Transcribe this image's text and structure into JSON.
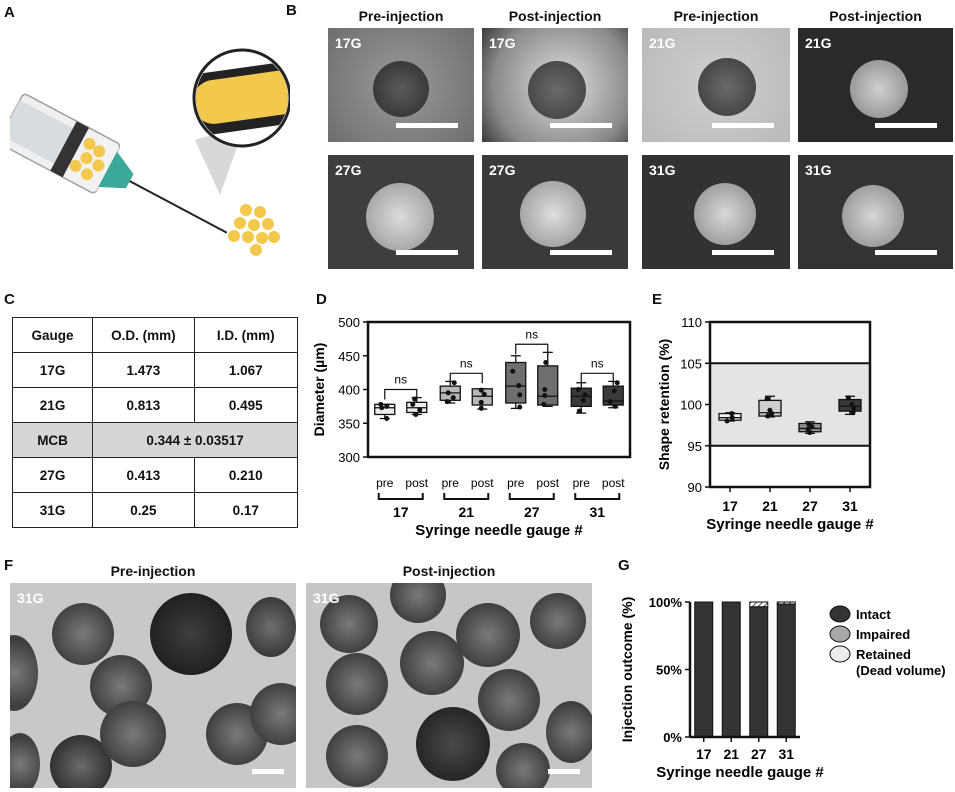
{
  "panels": {
    "A": "A",
    "B": "B",
    "C": "C",
    "D": "D",
    "E": "E",
    "F": "F",
    "G": "G"
  },
  "panel_b": {
    "headers": [
      "Pre-injection",
      "Post-injection",
      "Pre-injection",
      "Post-injection"
    ],
    "tags": [
      "17G",
      "17G",
      "21G",
      "21G",
      "27G",
      "27G",
      "31G",
      "31G"
    ]
  },
  "table": {
    "headers": [
      "Gauge",
      "O.D. (mm)",
      "I.D. (mm)"
    ],
    "rows": [
      {
        "gauge": "17G",
        "od": "1.473",
        "id": "1.067"
      },
      {
        "gauge": "21G",
        "od": "0.813",
        "id": "0.495"
      },
      {
        "gauge": "MCB",
        "merged": "0.344 ± 0.03517"
      },
      {
        "gauge": "27G",
        "od": "0.413",
        "id": "0.210"
      },
      {
        "gauge": "31G",
        "od": "0.25",
        "id": "0.17"
      }
    ]
  },
  "panel_f": {
    "headers": [
      "Pre-injection",
      "Post-injection"
    ],
    "tags": [
      "31G",
      "31G"
    ]
  },
  "chart_data": [
    {
      "panel": "D",
      "type": "box",
      "ylabel": "Diameter (µm)",
      "xlabel": "Syringe needle gauge #",
      "ylim": [
        300,
        500
      ],
      "yticks": [
        300,
        350,
        400,
        450,
        500
      ],
      "groups": [
        "17",
        "21",
        "27",
        "31"
      ],
      "sub_labels": [
        "pre",
        "post"
      ],
      "significance": [
        "ns",
        "ns",
        "ns",
        "ns"
      ],
      "boxes": [
        {
          "group": "17",
          "cond": "pre",
          "min": 357,
          "q1": 363,
          "median": 373,
          "q3": 378,
          "max": 378,
          "points": [
            357,
            373,
            375,
            378
          ]
        },
        {
          "group": "17",
          "cond": "post",
          "min": 363,
          "q1": 366,
          "median": 373,
          "q3": 381,
          "max": 388,
          "points": [
            363,
            370,
            378,
            386
          ]
        },
        {
          "group": "21",
          "cond": "pre",
          "min": 380,
          "q1": 384,
          "median": 395,
          "q3": 405,
          "max": 412,
          "points": [
            382,
            388,
            395,
            410
          ]
        },
        {
          "group": "21",
          "cond": "post",
          "min": 371,
          "q1": 377,
          "median": 390,
          "q3": 401,
          "max": 401,
          "points": [
            372,
            381,
            393,
            399
          ]
        },
        {
          "group": "27",
          "cond": "pre",
          "min": 372,
          "q1": 380,
          "median": 405,
          "q3": 440,
          "max": 450,
          "points": [
            374,
            392,
            406,
            427
          ]
        },
        {
          "group": "27",
          "cond": "post",
          "min": 375,
          "q1": 377,
          "median": 390,
          "q3": 435,
          "max": 455,
          "points": [
            378,
            391,
            400,
            440
          ]
        },
        {
          "group": "31",
          "cond": "pre",
          "min": 365,
          "q1": 375,
          "median": 390,
          "q3": 402,
          "max": 410,
          "points": [
            368,
            384,
            392,
            400
          ]
        },
        {
          "group": "31",
          "cond": "post",
          "min": 373,
          "q1": 377,
          "median": 383,
          "q3": 405,
          "max": 412,
          "points": [
            375,
            382,
            398,
            410
          ]
        }
      ]
    },
    {
      "panel": "E",
      "type": "box",
      "ylabel": "Shape retention (%)",
      "xlabel": "Syringe needle gauge #",
      "ylim": [
        90,
        110
      ],
      "yticks": [
        90,
        95,
        100,
        105,
        110
      ],
      "shaded_band": [
        95,
        105
      ],
      "groups": [
        "17",
        "21",
        "27",
        "31"
      ],
      "boxes": [
        {
          "group": "17",
          "min": 98.0,
          "q1": 98.1,
          "median": 98.4,
          "q3": 98.9,
          "max": 99.0,
          "points": [
            98.0,
            98.4,
            98.9
          ]
        },
        {
          "group": "21",
          "min": 98.5,
          "q1": 98.6,
          "median": 99.0,
          "q3": 100.5,
          "max": 101.0,
          "points": [
            98.6,
            98.9,
            99.3,
            100.7
          ]
        },
        {
          "group": "27",
          "min": 96.5,
          "q1": 96.7,
          "median": 97.1,
          "q3": 97.7,
          "max": 97.9,
          "points": [
            96.6,
            97.0,
            97.3,
            97.6
          ]
        },
        {
          "group": "31",
          "min": 98.8,
          "q1": 99.2,
          "median": 99.8,
          "q3": 100.6,
          "max": 101.0,
          "points": [
            99.0,
            99.6,
            100.0,
            100.8
          ]
        }
      ]
    },
    {
      "panel": "G",
      "type": "bar",
      "stacked": true,
      "ylabel": "Injection outcome (%)",
      "xlabel": "Syringe needle gauge #",
      "yticks": [
        "0%",
        "50%",
        "100%"
      ],
      "ylim": [
        0,
        100
      ],
      "categories": [
        "17",
        "21",
        "27",
        "31"
      ],
      "series": [
        {
          "name": "Intact",
          "values": [
            100,
            100,
            96.5,
            98.5
          ],
          "color": "#333333"
        },
        {
          "name": "Impaired",
          "values": [
            0,
            0,
            0,
            0
          ],
          "color": "#a8a8a8"
        },
        {
          "name": "Retained",
          "values": [
            0,
            0,
            3.5,
            1.5
          ],
          "color": "#e8e8e8"
        }
      ],
      "legend": [
        "Intact",
        "Impaired",
        "Retained",
        "(Dead volume)"
      ]
    }
  ]
}
